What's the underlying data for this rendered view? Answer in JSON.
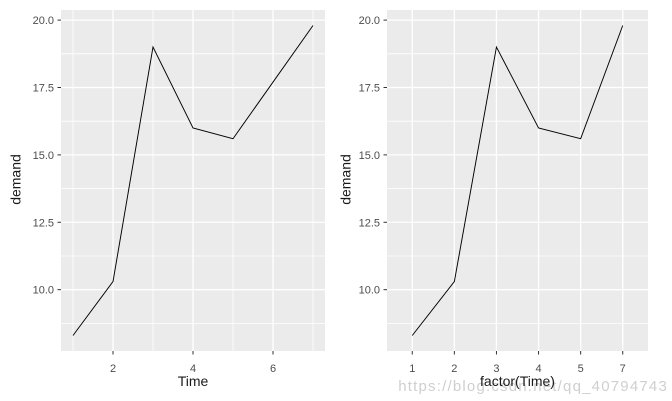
{
  "watermark": {
    "text": "https://blog.csdn.net/qq_40794743",
    "color": "#cfcfcf"
  },
  "colors": {
    "background": "#ffffff",
    "panel_bg": "#ebebeb",
    "grid": "#ffffff",
    "line": "#000000",
    "tick_label": "#4d4d4d",
    "tick_mark": "#333333",
    "axis_title": "#1a1a1a"
  },
  "chart_data": [
    {
      "type": "line",
      "title": "",
      "xlabel": "Time",
      "ylabel": "demand",
      "x_type": "continuous",
      "x": [
        1,
        2,
        3,
        4,
        5,
        7
      ],
      "y": [
        8.3,
        10.3,
        19.0,
        16.0,
        15.6,
        19.8
      ],
      "xlim": [
        0.7,
        7.3
      ],
      "ylim": [
        7.725,
        20.375
      ],
      "xticks": {
        "values": [
          2,
          4,
          6
        ],
        "labels": [
          "2",
          "4",
          "6"
        ]
      },
      "xminor": [
        1,
        3,
        5,
        7
      ],
      "yticks": {
        "values": [
          10,
          12.5,
          15,
          17.5,
          20
        ],
        "labels": [
          "10.0",
          "12.5",
          "15.0",
          "17.5",
          "20.0"
        ]
      },
      "yminor": [
        8.75,
        11.25,
        13.75,
        16.25,
        18.75
      ],
      "grid": true,
      "legend": "none"
    },
    {
      "type": "line",
      "title": "",
      "xlabel": "factor(Time)",
      "ylabel": "demand",
      "x_type": "discrete",
      "x": [
        1,
        2,
        3,
        4,
        5,
        7
      ],
      "y": [
        8.3,
        10.3,
        19.0,
        16.0,
        15.6,
        19.8
      ],
      "xlim": [
        0.4,
        6.6
      ],
      "ylim": [
        7.725,
        20.375
      ],
      "xticks": {
        "labels": [
          "1",
          "2",
          "3",
          "4",
          "5",
          "7"
        ]
      },
      "yticks": {
        "values": [
          10,
          12.5,
          15,
          17.5,
          20
        ],
        "labels": [
          "10.0",
          "12.5",
          "15.0",
          "17.5",
          "20.0"
        ]
      },
      "yminor": [
        8.75,
        11.25,
        13.75,
        16.25,
        18.75
      ],
      "grid": true,
      "legend": "none"
    }
  ]
}
